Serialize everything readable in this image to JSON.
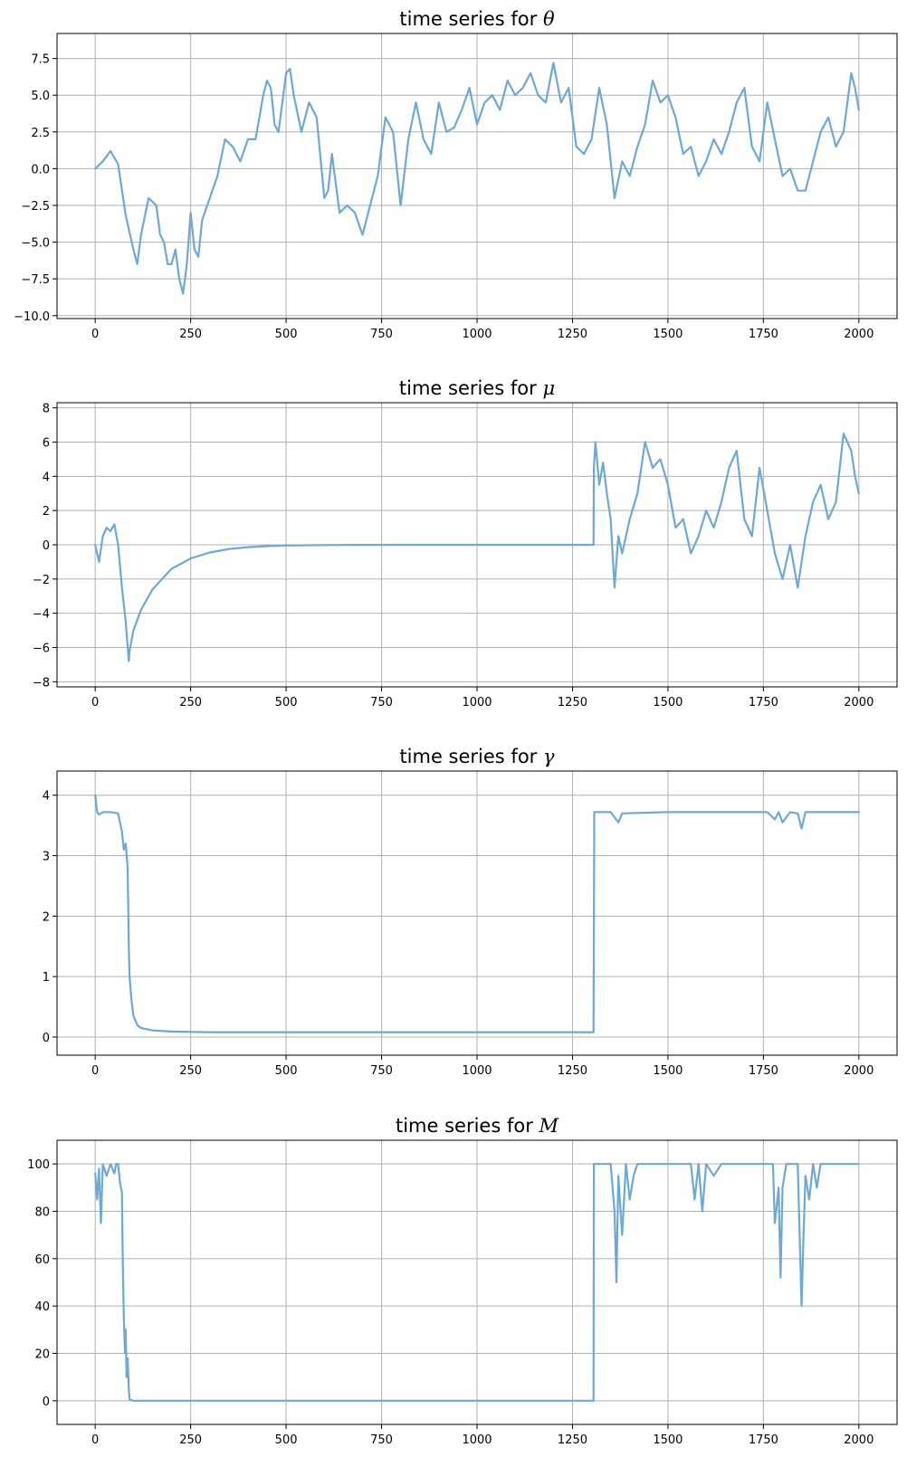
{
  "figure": {
    "background": "#ffffff",
    "line_color": "#6fa8d0",
    "grid_color": "#b0b0b0"
  },
  "chart_data": [
    {
      "type": "line",
      "title": "time series for θ",
      "title_prefix": "time series for ",
      "title_symbol": "θ",
      "xlim": [
        -100,
        2100
      ],
      "ylim": [
        -10.2,
        9.2
      ],
      "xticks": [
        0,
        250,
        500,
        750,
        1000,
        1250,
        1500,
        1750,
        2000
      ],
      "yticks": [
        -10.0,
        -7.5,
        -5.0,
        -2.5,
        0.0,
        2.5,
        5.0,
        7.5
      ],
      "ytick_labels": [
        "−10.0",
        "−7.5",
        "−5.0",
        "−2.5",
        "0.0",
        "2.5",
        "5.0",
        "7.5"
      ],
      "grid": true,
      "series": [
        {
          "x": [
            0,
            20,
            40,
            60,
            80,
            100,
            110,
            120,
            140,
            160,
            170,
            180,
            190,
            200,
            210,
            220,
            230,
            240,
            250,
            260,
            270,
            280,
            300,
            320,
            340,
            360,
            380,
            400,
            420,
            440,
            450,
            460,
            470,
            480,
            500,
            510,
            520,
            540,
            560,
            580,
            600,
            610,
            620,
            640,
            660,
            680,
            700,
            720,
            740,
            760,
            780,
            800,
            820,
            840,
            860,
            880,
            900,
            920,
            940,
            960,
            980,
            1000,
            1020,
            1040,
            1060,
            1080,
            1100,
            1120,
            1140,
            1160,
            1180,
            1200,
            1220,
            1240,
            1260,
            1280,
            1300,
            1320,
            1340,
            1360,
            1380,
            1400,
            1420,
            1440,
            1460,
            1480,
            1500,
            1520,
            1540,
            1560,
            1580,
            1600,
            1620,
            1640,
            1660,
            1680,
            1700,
            1720,
            1740,
            1760,
            1780,
            1800,
            1820,
            1840,
            1860,
            1880,
            1900,
            1920,
            1940,
            1960,
            1980,
            1990,
            2000
          ],
          "y": [
            0.0,
            0.5,
            1.2,
            0.3,
            -3.2,
            -5.5,
            -6.5,
            -4.5,
            -2.0,
            -2.5,
            -4.5,
            -5.0,
            -6.5,
            -6.5,
            -5.5,
            -7.5,
            -8.5,
            -6.5,
            -3.0,
            -5.5,
            -6.0,
            -3.5,
            -2.0,
            -0.5,
            2.0,
            1.5,
            0.5,
            2.0,
            2.0,
            5.0,
            6.0,
            5.5,
            3.0,
            2.5,
            6.5,
            6.8,
            5.0,
            2.5,
            4.5,
            3.5,
            -2.0,
            -1.5,
            1.0,
            -3.0,
            -2.5,
            -3.0,
            -4.5,
            -2.5,
            -0.5,
            3.5,
            2.5,
            -2.5,
            2.0,
            4.5,
            2.0,
            1.0,
            4.5,
            2.5,
            2.8,
            4.0,
            5.5,
            3.0,
            4.5,
            5.0,
            4.0,
            6.0,
            5.0,
            5.5,
            6.5,
            5.0,
            4.5,
            7.2,
            4.5,
            5.5,
            1.5,
            1.0,
            2.0,
            5.5,
            3.0,
            -2.0,
            0.5,
            -0.5,
            1.5,
            3.0,
            6.0,
            4.5,
            5.0,
            3.5,
            1.0,
            1.5,
            -0.5,
            0.5,
            2.0,
            1.0,
            2.5,
            4.5,
            5.5,
            1.5,
            0.5,
            4.5,
            2.0,
            -0.5,
            0.0,
            -1.5,
            -1.5,
            0.5,
            2.5,
            3.5,
            1.5,
            2.5,
            6.5,
            5.5,
            4.0
          ]
        }
      ]
    },
    {
      "type": "line",
      "title": "time series for μ",
      "title_prefix": "time series for ",
      "title_symbol": "μ",
      "xlim": [
        -100,
        2100
      ],
      "ylim": [
        -8.3,
        8.3
      ],
      "xticks": [
        0,
        250,
        500,
        750,
        1000,
        1250,
        1500,
        1750,
        2000
      ],
      "yticks": [
        -8,
        -6,
        -4,
        -2,
        0,
        2,
        4,
        6,
        8
      ],
      "ytick_labels": [
        "−8",
        "−6",
        "−4",
        "−2",
        "0",
        "2",
        "4",
        "6",
        "8"
      ],
      "grid": true,
      "series": [
        {
          "x": [
            0,
            10,
            20,
            30,
            40,
            50,
            60,
            70,
            80,
            88,
            90,
            100,
            120,
            150,
            200,
            250,
            300,
            350,
            400,
            450,
            500,
            600,
            700,
            800,
            1000,
            1200,
            1305,
            1306,
            1310,
            1320,
            1330,
            1340,
            1350,
            1360,
            1370,
            1380,
            1400,
            1420,
            1440,
            1460,
            1480,
            1500,
            1520,
            1540,
            1560,
            1580,
            1600,
            1620,
            1640,
            1660,
            1680,
            1700,
            1720,
            1740,
            1760,
            1780,
            1800,
            1820,
            1840,
            1860,
            1880,
            1900,
            1920,
            1940,
            1960,
            1980,
            1990,
            2000
          ],
          "y": [
            0.0,
            -1.0,
            0.5,
            1.0,
            0.8,
            1.2,
            0.0,
            -2.5,
            -4.5,
            -6.8,
            -6.2,
            -5.0,
            -3.8,
            -2.6,
            -1.4,
            -0.8,
            -0.45,
            -0.25,
            -0.14,
            -0.08,
            -0.04,
            -0.015,
            -0.005,
            0.0,
            0.0,
            0.0,
            0.0,
            4.5,
            6.0,
            3.5,
            4.8,
            3.0,
            1.5,
            -2.5,
            0.5,
            -0.5,
            1.5,
            3.0,
            6.0,
            4.5,
            5.0,
            3.5,
            1.0,
            1.5,
            -0.5,
            0.5,
            2.0,
            1.0,
            2.5,
            4.5,
            5.5,
            1.5,
            0.5,
            4.5,
            2.0,
            -0.5,
            -2.0,
            0.0,
            -2.5,
            0.5,
            2.5,
            3.5,
            1.5,
            2.5,
            6.5,
            5.5,
            4.0,
            3.0
          ]
        }
      ]
    },
    {
      "type": "line",
      "title": "time series for γ",
      "title_prefix": "time series for ",
      "title_symbol": "γ",
      "xlim": [
        -100,
        2100
      ],
      "ylim": [
        -0.3,
        4.4
      ],
      "xticks": [
        0,
        250,
        500,
        750,
        1000,
        1250,
        1500,
        1750,
        2000
      ],
      "yticks": [
        0,
        1,
        2,
        3,
        4
      ],
      "ytick_labels": [
        "0",
        "1",
        "2",
        "3",
        "4"
      ],
      "grid": true,
      "series": [
        {
          "x": [
            0,
            5,
            10,
            20,
            40,
            60,
            70,
            75,
            80,
            85,
            88,
            90,
            95,
            100,
            110,
            120,
            150,
            200,
            300,
            500,
            800,
            1000,
            1305,
            1307,
            1350,
            1370,
            1380,
            1500,
            1600,
            1700,
            1760,
            1780,
            1790,
            1800,
            1820,
            1840,
            1850,
            1860,
            1900,
            1950,
            2000
          ],
          "y": [
            4.0,
            3.72,
            3.68,
            3.72,
            3.72,
            3.7,
            3.4,
            3.1,
            3.2,
            2.8,
            1.5,
            1.0,
            0.6,
            0.35,
            0.2,
            0.15,
            0.11,
            0.09,
            0.08,
            0.08,
            0.08,
            0.08,
            0.08,
            3.72,
            3.72,
            3.55,
            3.7,
            3.72,
            3.72,
            3.72,
            3.72,
            3.6,
            3.72,
            3.55,
            3.72,
            3.7,
            3.45,
            3.72,
            3.72,
            3.72,
            3.72
          ]
        }
      ]
    },
    {
      "type": "line",
      "title": "time series for M",
      "title_prefix": "time series for ",
      "title_symbol": "M",
      "xlim": [
        -100,
        2100
      ],
      "ylim": [
        -10,
        110
      ],
      "xticks": [
        0,
        250,
        500,
        750,
        1000,
        1250,
        1500,
        1750,
        2000
      ],
      "yticks": [
        0,
        20,
        40,
        60,
        80,
        100
      ],
      "ytick_labels": [
        "0",
        "20",
        "40",
        "60",
        "80",
        "100"
      ],
      "grid": true,
      "series": [
        {
          "x": [
            0,
            5,
            10,
            15,
            20,
            30,
            40,
            50,
            55,
            60,
            65,
            70,
            72,
            75,
            78,
            80,
            82,
            85,
            88,
            90,
            100,
            300,
            600,
            900,
            1200,
            1305,
            1306,
            1350,
            1360,
            1365,
            1370,
            1380,
            1390,
            1400,
            1410,
            1420,
            1430,
            1450,
            1500,
            1560,
            1570,
            1580,
            1590,
            1600,
            1620,
            1640,
            1700,
            1750,
            1760,
            1775,
            1780,
            1790,
            1795,
            1800,
            1810,
            1820,
            1840,
            1850,
            1855,
            1860,
            1870,
            1880,
            1890,
            1900,
            1950,
            2000
          ],
          "y": [
            96,
            85,
            98,
            75,
            100,
            95,
            100,
            96,
            100,
            100,
            92,
            88,
            60,
            35,
            20,
            30,
            10,
            18,
            5,
            0.5,
            0,
            0,
            0,
            0,
            0,
            0,
            100,
            100,
            80,
            50,
            95,
            70,
            100,
            85,
            95,
            100,
            100,
            100,
            100,
            100,
            85,
            100,
            80,
            100,
            95,
            100,
            100,
            100,
            100,
            100,
            75,
            90,
            52,
            90,
            100,
            100,
            100,
            40,
            70,
            95,
            85,
            100,
            90,
            100,
            100,
            100
          ]
        }
      ]
    }
  ]
}
